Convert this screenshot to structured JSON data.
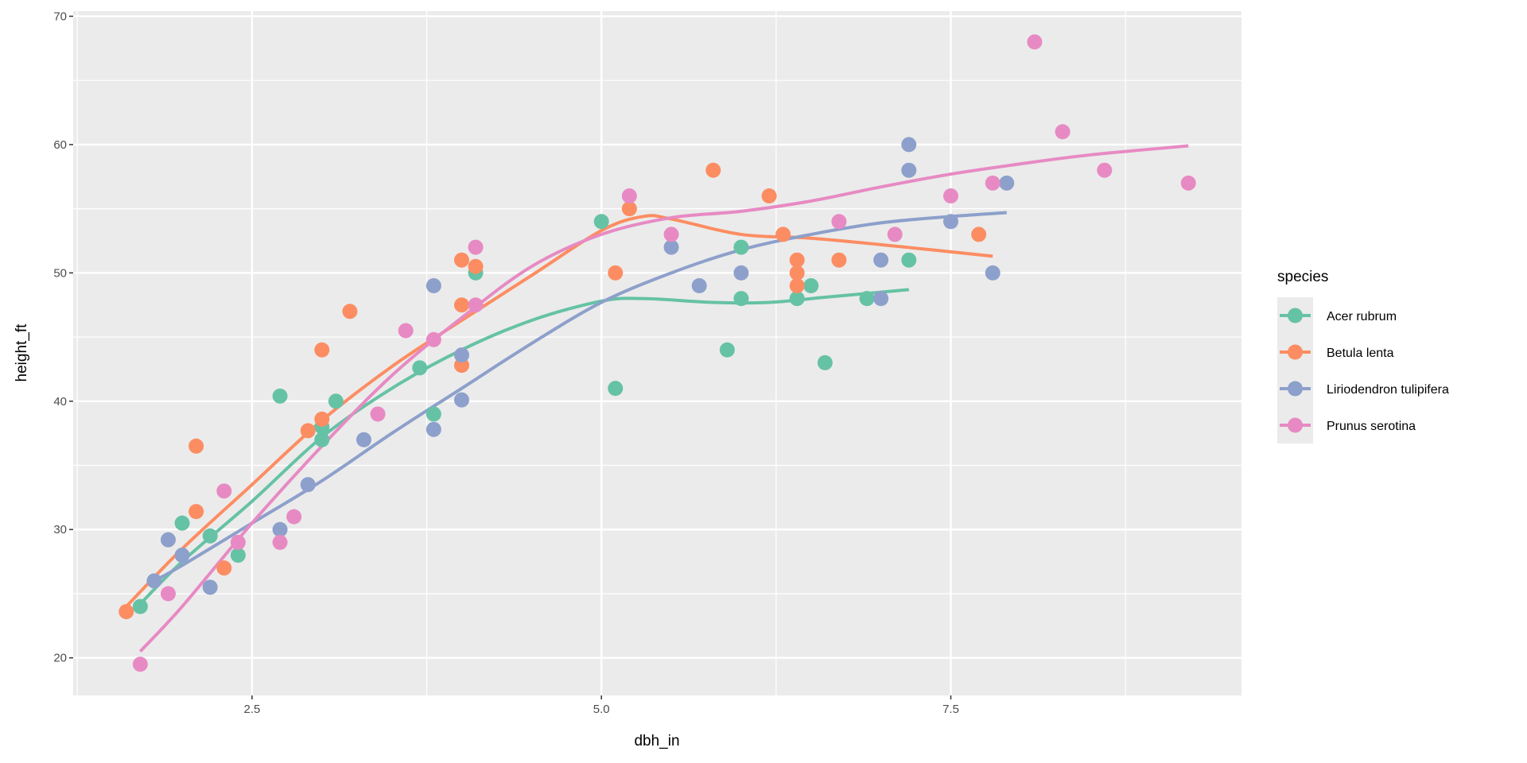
{
  "chart_data": {
    "type": "scatter",
    "title": "",
    "xlabel": "dbh_in",
    "ylabel": "height_ft",
    "xlim": [
      1.22,
      9.58
    ],
    "ylim": [
      17.07,
      70.4
    ],
    "x_ticks": [
      2.5,
      5.0,
      7.5
    ],
    "x_tick_labels": [
      "2.5",
      "5.0",
      "7.5"
    ],
    "y_ticks": [
      20,
      30,
      40,
      50,
      60,
      70
    ],
    "y_tick_labels": [
      "20",
      "30",
      "40",
      "50",
      "60",
      "70"
    ],
    "grid": true,
    "legend": {
      "title": "species",
      "position": "right"
    },
    "series": [
      {
        "name": "Acer rubrum",
        "color": "#66C2A5",
        "points": [
          [
            1.7,
            24
          ],
          [
            2.0,
            30.5
          ],
          [
            2.2,
            29.5
          ],
          [
            2.4,
            28
          ],
          [
            2.7,
            40.4
          ],
          [
            3.0,
            38
          ],
          [
            3.0,
            37
          ],
          [
            3.1,
            40
          ],
          [
            3.7,
            42.6
          ],
          [
            3.8,
            39
          ],
          [
            4.1,
            50
          ],
          [
            5.0,
            54
          ],
          [
            5.1,
            41
          ],
          [
            5.9,
            44
          ],
          [
            6.0,
            52
          ],
          [
            6.0,
            48
          ],
          [
            6.4,
            48
          ],
          [
            6.5,
            49
          ],
          [
            6.6,
            43
          ],
          [
            6.9,
            48
          ],
          [
            7.2,
            51
          ]
        ],
        "smooth": [
          [
            1.7,
            24.2
          ],
          [
            2.0,
            27.5
          ],
          [
            2.5,
            32.2
          ],
          [
            3.0,
            37.2
          ],
          [
            3.5,
            41.0
          ],
          [
            4.0,
            44.0
          ],
          [
            4.5,
            46.3
          ],
          [
            5.0,
            47.8
          ],
          [
            5.3,
            48.0
          ],
          [
            5.8,
            47.7
          ],
          [
            6.2,
            47.7
          ],
          [
            6.6,
            48.1
          ],
          [
            7.2,
            48.7
          ]
        ]
      },
      {
        "name": "Betula lenta",
        "color": "#FC8D62",
        "points": [
          [
            1.6,
            23.6
          ],
          [
            2.1,
            36.5
          ],
          [
            2.1,
            31.4
          ],
          [
            2.3,
            27
          ],
          [
            2.9,
            37.7
          ],
          [
            3.0,
            44
          ],
          [
            3.0,
            38.6
          ],
          [
            3.2,
            47
          ],
          [
            4.0,
            51
          ],
          [
            4.1,
            50.5
          ],
          [
            4.0,
            47.5
          ],
          [
            4.0,
            42.8
          ],
          [
            5.1,
            50
          ],
          [
            5.2,
            55
          ],
          [
            5.8,
            58
          ],
          [
            6.2,
            56
          ],
          [
            6.3,
            53
          ],
          [
            6.4,
            51
          ],
          [
            6.4,
            50
          ],
          [
            6.4,
            49
          ],
          [
            6.7,
            51
          ],
          [
            7.7,
            53
          ]
        ],
        "smooth": [
          [
            1.6,
            24
          ],
          [
            2.0,
            28.5
          ],
          [
            2.5,
            33.5
          ],
          [
            3.0,
            38.5
          ],
          [
            3.5,
            42.7
          ],
          [
            4.0,
            46.3
          ],
          [
            4.5,
            49.8
          ],
          [
            5.0,
            53.3
          ],
          [
            5.3,
            54.4
          ],
          [
            5.5,
            54.2
          ],
          [
            6.0,
            53.0
          ],
          [
            6.5,
            52.7
          ],
          [
            7.0,
            52.2
          ],
          [
            7.8,
            51.3
          ]
        ]
      },
      {
        "name": "Liriodendron tulipifera",
        "color": "#8DA0CB",
        "points": [
          [
            1.9,
            29.2
          ],
          [
            1.8,
            26
          ],
          [
            2.0,
            28
          ],
          [
            2.2,
            25.5
          ],
          [
            2.7,
            30
          ],
          [
            2.9,
            33.5
          ],
          [
            3.3,
            37
          ],
          [
            3.8,
            49
          ],
          [
            3.8,
            37.8
          ],
          [
            4.0,
            43.6
          ],
          [
            4.0,
            40.1
          ],
          [
            5.5,
            52
          ],
          [
            5.7,
            49
          ],
          [
            6.0,
            50
          ],
          [
            7.0,
            51
          ],
          [
            7.0,
            48
          ],
          [
            7.2,
            60
          ],
          [
            7.2,
            58
          ],
          [
            7.5,
            54
          ],
          [
            7.8,
            50
          ],
          [
            7.9,
            57
          ]
        ],
        "smooth": [
          [
            1.8,
            26
          ],
          [
            2.0,
            27.2
          ],
          [
            2.5,
            30.5
          ],
          [
            3.0,
            33.8
          ],
          [
            3.5,
            37.5
          ],
          [
            4.0,
            41.0
          ],
          [
            4.5,
            44.5
          ],
          [
            5.0,
            47.7
          ],
          [
            5.5,
            50.0
          ],
          [
            6.0,
            51.8
          ],
          [
            6.5,
            53.0
          ],
          [
            7.0,
            53.9
          ],
          [
            7.5,
            54.4
          ],
          [
            7.9,
            54.7
          ]
        ]
      },
      {
        "name": "Prunus serotina",
        "color": "#E78AC3",
        "points": [
          [
            1.7,
            19.5
          ],
          [
            1.9,
            25
          ],
          [
            2.3,
            33
          ],
          [
            2.4,
            29
          ],
          [
            2.7,
            29
          ],
          [
            2.8,
            31
          ],
          [
            3.4,
            39
          ],
          [
            3.6,
            45.5
          ],
          [
            3.8,
            44.8
          ],
          [
            4.1,
            52
          ],
          [
            4.1,
            47.5
          ],
          [
            5.2,
            56
          ],
          [
            5.5,
            53
          ],
          [
            6.7,
            54
          ],
          [
            7.1,
            53
          ],
          [
            7.5,
            56
          ],
          [
            7.8,
            57
          ],
          [
            8.1,
            68
          ],
          [
            8.3,
            61
          ],
          [
            8.6,
            58
          ],
          [
            9.2,
            57
          ]
        ],
        "smooth": [
          [
            1.7,
            20.5
          ],
          [
            2.0,
            24.0
          ],
          [
            2.5,
            30.5
          ],
          [
            3.0,
            36.5
          ],
          [
            3.5,
            42.0
          ],
          [
            4.0,
            46.5
          ],
          [
            4.5,
            50.5
          ],
          [
            5.0,
            53.0
          ],
          [
            5.5,
            54.3
          ],
          [
            6.0,
            54.8
          ],
          [
            6.5,
            55.6
          ],
          [
            7.0,
            56.7
          ],
          [
            7.5,
            57.7
          ],
          [
            8.0,
            58.5
          ],
          [
            8.5,
            59.2
          ],
          [
            9.2,
            59.9
          ]
        ]
      }
    ]
  }
}
